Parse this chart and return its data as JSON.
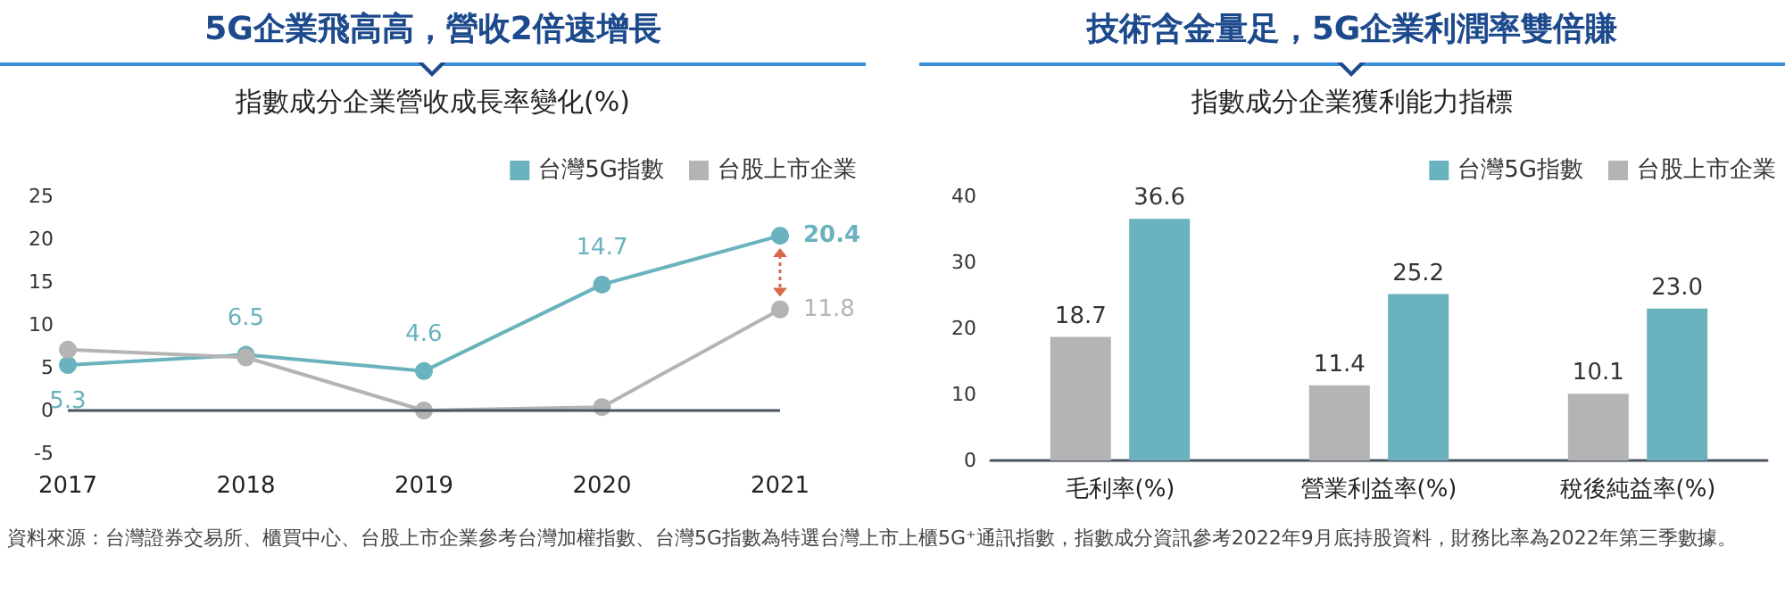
{
  "chart_data": [
    {
      "type": "line",
      "title": "5G企業飛高高，營收2倍速增長",
      "subtitle": "指數成分企業營收成長率變化(%)",
      "categories": [
        "2017",
        "2018",
        "2019",
        "2020",
        "2021"
      ],
      "series": [
        {
          "name": "台灣5G指數",
          "color": "#6ab2bd",
          "values": [
            5.3,
            6.5,
            4.6,
            14.7,
            20.4
          ],
          "value_labels": [
            "5.3",
            "6.5",
            "4.6",
            "14.7",
            "20.4"
          ]
        },
        {
          "name": "台股上市企業",
          "color": "#b4b4b4",
          "values": [
            7.1,
            6.2,
            0.0,
            0.4,
            11.8
          ],
          "value_labels": [
            null,
            null,
            null,
            null,
            "11.8"
          ]
        }
      ],
      "ylim": [
        -5,
        25
      ],
      "yticks": [
        -5,
        0,
        5,
        10,
        15,
        20,
        25
      ],
      "grid": false,
      "ref_lines": [
        {
          "axis": "y",
          "value": 0,
          "color": "#4a5560"
        }
      ],
      "legend": "top right",
      "marker": "circle",
      "line_style": "solid",
      "annotations": [
        "資料來源：台灣證券交易所、櫃買中心、台股上市企業參考台灣加權指數、台灣5G指數為特選台灣上市上櫃5G⁺通訊指數，指數成分資訊參考2022年9月底持股資料，財務比率為2022年第三季數據。"
      ]
    },
    {
      "type": "bar",
      "title": "技術含金量足，5G企業利潤率雙倍賺",
      "subtitle": "指數成分企業獲利能力指標",
      "categories": [
        "毛利率(%)",
        "營業利益率(%)",
        "稅後純益率(%)"
      ],
      "series": [
        {
          "name": "台股上市企業",
          "color": "#b4b4b4",
          "values": [
            18.7,
            11.4,
            10.1
          ],
          "value_labels": [
            "18.7",
            "11.4",
            "10.1"
          ]
        },
        {
          "name": "台灣5G指數",
          "color": "#6ab2bd",
          "values": [
            36.6,
            25.2,
            23.0
          ],
          "value_labels": [
            "36.6",
            "25.2",
            "23.0"
          ]
        }
      ],
      "ylim": [
        0,
        40
      ],
      "yticks": [
        0,
        10,
        20,
        30,
        40
      ],
      "grid": false,
      "legend": "top right"
    }
  ]
}
